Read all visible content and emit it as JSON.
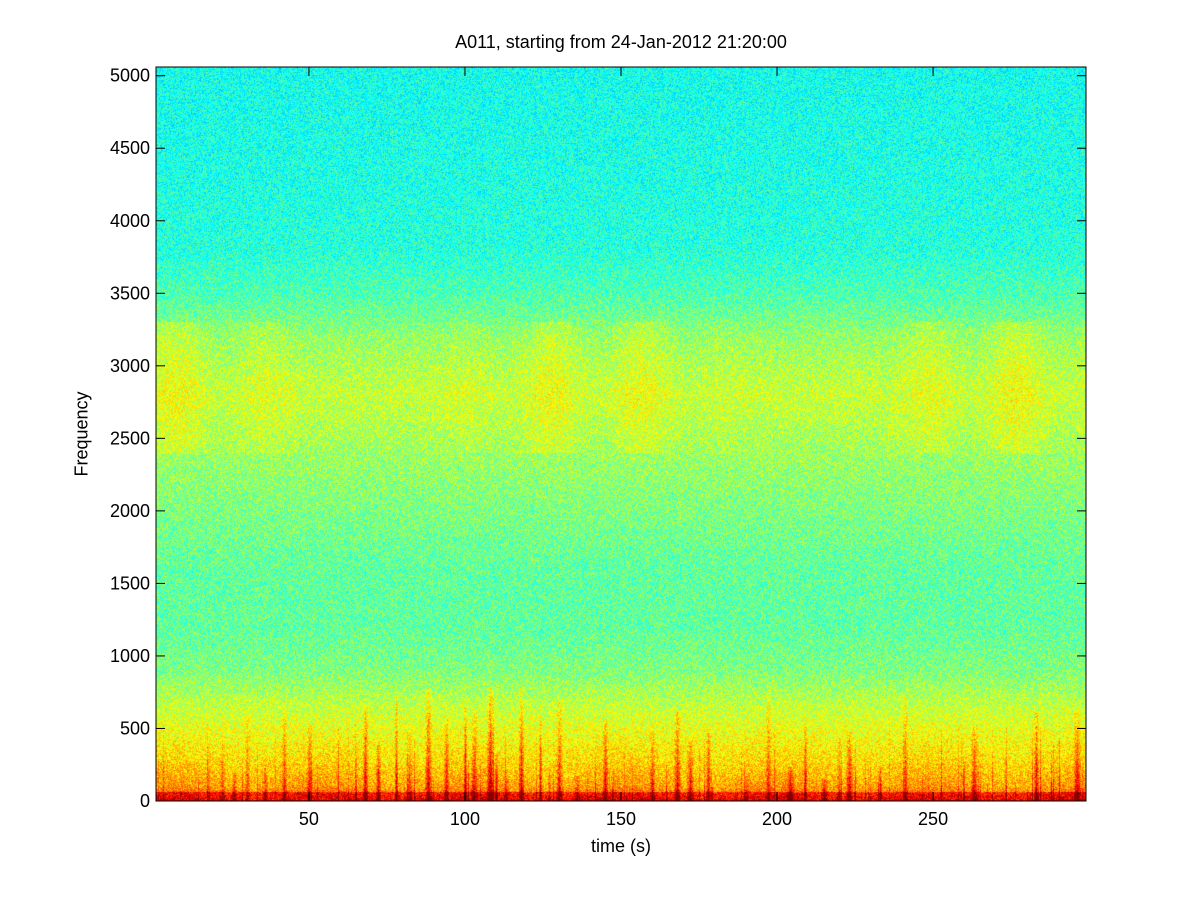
{
  "chart_data": {
    "type": "heatmap",
    "title": "A011, starting from 24-Jan-2012 21:20:00",
    "xlabel": "time (s)",
    "ylabel": "Frequency",
    "xlim": [
      1,
      299
    ],
    "ylim": [
      0,
      5060
    ],
    "x_ticks": [
      50,
      100,
      150,
      200,
      250
    ],
    "y_ticks": [
      0,
      500,
      1000,
      1500,
      2000,
      2500,
      3000,
      3500,
      4000,
      4500,
      5000
    ],
    "colormap": "jet",
    "grid": false,
    "background_level_by_frequency": [
      {
        "frequency": 0,
        "level": 0.78
      },
      {
        "frequency": 100,
        "level": 0.7
      },
      {
        "frequency": 300,
        "level": 0.64
      },
      {
        "frequency": 600,
        "level": 0.58
      },
      {
        "frequency": 900,
        "level": 0.5
      },
      {
        "frequency": 1200,
        "level": 0.47
      },
      {
        "frequency": 1600,
        "level": 0.47
      },
      {
        "frequency": 2000,
        "level": 0.5
      },
      {
        "frequency": 2400,
        "level": 0.53
      },
      {
        "frequency": 2800,
        "level": 0.57
      },
      {
        "frequency": 3200,
        "level": 0.52
      },
      {
        "frequency": 3500,
        "level": 0.45
      },
      {
        "frequency": 3800,
        "level": 0.41
      },
      {
        "frequency": 4300,
        "level": 0.4
      },
      {
        "frequency": 5060,
        "level": 0.39
      }
    ],
    "transient_events_s": [
      22,
      26,
      30,
      36,
      42,
      50,
      68,
      72,
      78,
      82,
      88,
      94,
      100,
      103,
      108,
      110,
      113,
      118,
      124,
      127,
      130,
      136,
      145,
      160,
      168,
      172,
      178,
      190,
      197,
      204,
      209,
      215,
      220,
      223,
      233,
      241,
      263,
      283,
      296
    ]
  }
}
